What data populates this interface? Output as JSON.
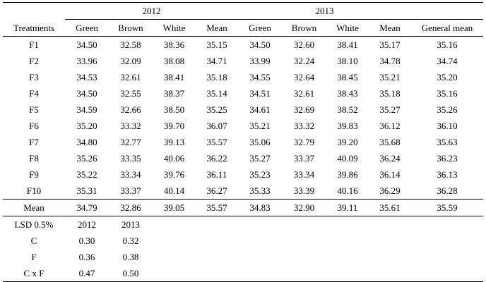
{
  "table": {
    "year_headers": [
      "2012",
      "2013"
    ],
    "col_headers": [
      "Treatments",
      "Green",
      "Brown",
      "White",
      "Mean",
      "Green",
      "Brown",
      "White",
      "Mean",
      "General mean"
    ],
    "rows": [
      {
        "treatment": "F1",
        "values": [
          "34.50",
          "32.58",
          "38.36",
          "35.15",
          "34.50",
          "32.60",
          "38.41",
          "35.17",
          "35.16"
        ]
      },
      {
        "treatment": "F2",
        "values": [
          "33.96",
          "32.09",
          "38.08",
          "34.71",
          "33.99",
          "32.24",
          "38.10",
          "34.78",
          "34.74"
        ]
      },
      {
        "treatment": "F3",
        "values": [
          "34.53",
          "32.61",
          "38.41",
          "35.18",
          "34.55",
          "32.64",
          "38.45",
          "35.21",
          "35.20"
        ]
      },
      {
        "treatment": "F4",
        "values": [
          "34.50",
          "32.55",
          "38.37",
          "35.14",
          "34.51",
          "32.61",
          "38.43",
          "35.18",
          "35.16"
        ]
      },
      {
        "treatment": "F5",
        "values": [
          "34.59",
          "32.66",
          "38.50",
          "35.25",
          "34.61",
          "32.69",
          "38.52",
          "35.27",
          "35.26"
        ]
      },
      {
        "treatment": "F6",
        "values": [
          "35.20",
          "33.32",
          "39.70",
          "36.07",
          "35.21",
          "33.32",
          "39.83",
          "36.12",
          "36.10"
        ]
      },
      {
        "treatment": "F7",
        "values": [
          "34.80",
          "32.77",
          "39.13",
          "35.57",
          "35.06",
          "32.79",
          "39.20",
          "35.68",
          "35.63"
        ]
      },
      {
        "treatment": "F8",
        "values": [
          "35.26",
          "33.35",
          "40.06",
          "36.22",
          "35.27",
          "33.37",
          "40.09",
          "36.24",
          "36.23"
        ]
      },
      {
        "treatment": "F9",
        "values": [
          "35.22",
          "33.34",
          "39.76",
          "36.11",
          "35.23",
          "33.34",
          "39.86",
          "36.14",
          "36.13"
        ]
      },
      {
        "treatment": "F10",
        "values": [
          "35.31",
          "33.37",
          "40.14",
          "36.27",
          "35.33",
          "33.39",
          "40.16",
          "36.29",
          "36.28"
        ]
      }
    ],
    "mean_row": {
      "label": "Mean",
      "values": [
        "34.79",
        "32.86",
        "39.05",
        "35.57",
        "34.83",
        "32.90",
        "39.11",
        "35.61",
        "35.59"
      ]
    },
    "lsd": {
      "label": "LSD 0.5%",
      "years": [
        "2012",
        "2013"
      ],
      "rows": [
        {
          "label": "C",
          "values": [
            "0.30",
            "0.32"
          ]
        },
        {
          "label": "F",
          "values": [
            "0.36",
            "0.38"
          ]
        },
        {
          "label": "C x F",
          "values": [
            "0.47",
            "0.50"
          ]
        }
      ]
    }
  }
}
